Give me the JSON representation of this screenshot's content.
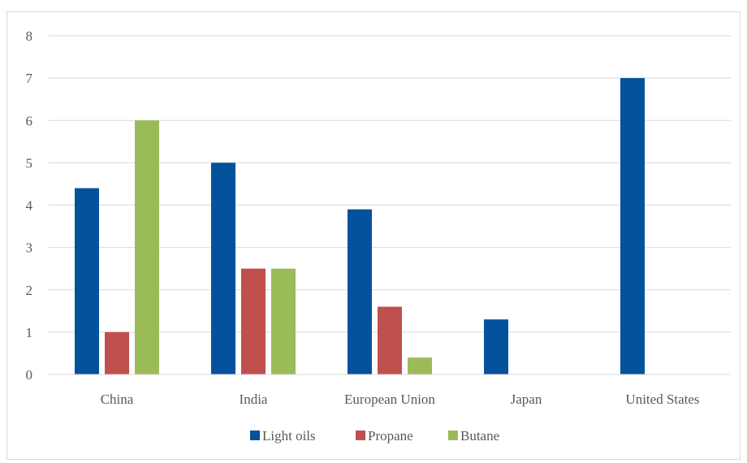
{
  "chart_data": {
    "type": "bar",
    "title": "",
    "xlabel": "",
    "ylabel": "",
    "categories": [
      "China",
      "India",
      "European Union",
      "Japan",
      "United States"
    ],
    "series": [
      {
        "name": "Light oils",
        "color": "#02529c",
        "values": [
          4.4,
          5,
          3.9,
          1.3,
          7
        ]
      },
      {
        "name": "Propane",
        "color": "#c0504d",
        "values": [
          1,
          2.5,
          1.6,
          null,
          null
        ]
      },
      {
        "name": "Butane",
        "color": "#9bbb59",
        "values": [
          6,
          2.5,
          0.4,
          null,
          null
        ]
      }
    ],
    "ylim": [
      0,
      8
    ],
    "yticks": [
      "0",
      "1",
      "2",
      "3",
      "4",
      "5",
      "6",
      "7",
      "8"
    ],
    "grid": true,
    "legend_position": "bottom"
  }
}
